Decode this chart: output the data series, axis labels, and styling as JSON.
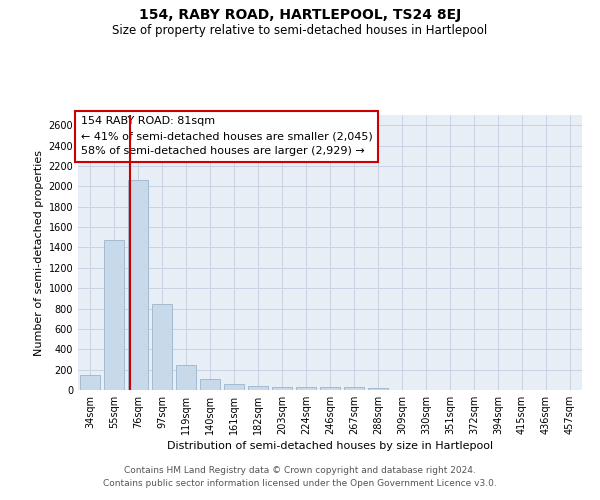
{
  "title": "154, RABY ROAD, HARTLEPOOL, TS24 8EJ",
  "subtitle": "Size of property relative to semi-detached houses in Hartlepool",
  "xlabel": "Distribution of semi-detached houses by size in Hartlepool",
  "ylabel": "Number of semi-detached properties",
  "footer_line1": "Contains HM Land Registry data © Crown copyright and database right 2024.",
  "footer_line2": "Contains public sector information licensed under the Open Government Licence v3.0.",
  "annotation_line1": "154 RABY ROAD: 81sqm",
  "annotation_line2": "← 41% of semi-detached houses are smaller (2,045)",
  "annotation_line3": "58% of semi-detached houses are larger (2,929) →",
  "bar_color": "#c8d9ea",
  "bar_edge_color": "#9ab5cc",
  "red_line_color": "#cc0000",
  "grid_color": "#c8d4e4",
  "background_color": "#e8eef6",
  "categories": [
    "34sqm",
    "55sqm",
    "76sqm",
    "97sqm",
    "119sqm",
    "140sqm",
    "161sqm",
    "182sqm",
    "203sqm",
    "224sqm",
    "246sqm",
    "267sqm",
    "288sqm",
    "309sqm",
    "330sqm",
    "351sqm",
    "372sqm",
    "394sqm",
    "415sqm",
    "436sqm",
    "457sqm"
  ],
  "values": [
    150,
    1470,
    2060,
    840,
    248,
    112,
    60,
    38,
    28,
    28,
    28,
    28,
    18,
    0,
    0,
    0,
    0,
    0,
    0,
    0,
    0
  ],
  "red_line_x": 1.68,
  "ylim_max": 2700,
  "ytick_step": 200,
  "title_fontsize": 10,
  "subtitle_fontsize": 8.5,
  "ylabel_fontsize": 8,
  "xlabel_fontsize": 8,
  "tick_fontsize": 7,
  "annotation_fontsize": 8,
  "footer_fontsize": 6.5
}
